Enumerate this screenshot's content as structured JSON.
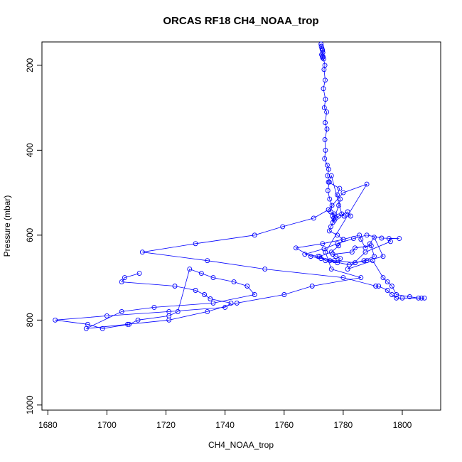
{
  "chart_data": {
    "type": "line",
    "title": "ORCAS RF18 CH4_NOAA_trop",
    "xlabel": "CH4_NOAA_trop",
    "ylabel": "Pressure (mbar)",
    "xlim": [
      1678,
      1813
    ],
    "ylim": [
      1012,
      145
    ],
    "y_reversed": true,
    "x_ticks": [
      1680,
      1700,
      1720,
      1740,
      1760,
      1780,
      1800
    ],
    "y_ticks": [
      200,
      400,
      600,
      800,
      1000
    ],
    "series_color": "#0000ff",
    "marker": "open-circle",
    "series": [
      {
        "x": [
          1772.5,
          1772.6,
          1772.8,
          1772.9,
          1773.0,
          1773.1,
          1772.7,
          1772.9,
          1773.2,
          1773.0,
          1773.4,
          1773.8,
          1773.5,
          1773.9,
          1773.3,
          1774.0,
          1773.6,
          1774.4,
          1773.9,
          1774.5,
          1773.8,
          1774.0,
          1773.7,
          1774.6,
          1775.1,
          1774.7,
          1775.3,
          1774.8,
          1775.4,
          1776.2,
          1775.8,
          1777.0,
          1776.4,
          1777.5,
          1776.8,
          1776.5,
          1778.5,
          1779.0,
          1778.0,
          1778.8,
          1775.0,
          1776.0,
          1779.5,
          1780.3,
          1782.5,
          1781.5,
          1778.5,
          1777.0,
          1775.8,
          1775.3,
          1778.0,
          1780.0,
          1785.5,
          1786.0,
          1787.5,
          1789.0,
          1790.5,
          1793.5,
          1788.0,
          1784.0,
          1777.0,
          1772.5,
          1769.0,
          1764.0,
          1773.0,
          1780.0,
          1778.5,
          1776.0,
          1772.0,
          1774.0,
          1778.0,
          1779.0,
          1777.5,
          1776.5,
          1783.0,
          1784.0,
          1789.5,
          1790.5,
          1787.0,
          1784.0,
          1782.0,
          1775.5,
          1771.5,
          1767.0,
          1773.5,
          1778.0,
          1783.5,
          1788.0,
          1793.0,
          1799.0,
          1795.5,
          1796.0,
          1787.5,
          1781.5,
          1790.0,
          1793.5,
          1795.0,
          1796.5,
          1798.0,
          1802.5,
          1805.5,
          1807.5,
          1806.5,
          1800.0,
          1798.0,
          1796.5,
          1795.0,
          1792.0,
          1791.0,
          1780.0,
          1753.5,
          1734.0,
          1712.0,
          1730.0,
          1750.0,
          1759.5,
          1770.0,
          1775.0,
          1780.0,
          1788.0,
          1774.0,
          1776.0,
          1786.0,
          1769.5,
          1760.0,
          1744.0,
          1734.0,
          1721.0,
          1707.0,
          1693.0,
          1705.0,
          1716.0,
          1736.0,
          1750.0,
          1747.5,
          1743.0,
          1736.0,
          1732.0,
          1728.0,
          1724.0,
          1721.0,
          1710.5,
          1707.5,
          1698.5,
          1693.5,
          1682.5,
          1700.0,
          1721.0,
          1740.0,
          1742.0,
          1735.0,
          1733.0,
          1730.0,
          1723.0,
          1705.0,
          1706.0,
          1711.0
        ],
        "y": [
          150,
          155,
          160,
          163,
          165,
          170,
          175,
          178,
          180,
          182,
          185,
          200,
          210,
          235,
          255,
          280,
          300,
          310,
          335,
          350,
          375,
          400,
          420,
          435,
          445,
          460,
          475,
          495,
          515,
          530,
          545,
          550,
          555,
          560,
          560,
          570,
          530,
          515,
          505,
          490,
          475,
          460,
          550,
          555,
          555,
          545,
          555,
          565,
          580,
          590,
          600,
          610,
          600,
          610,
          630,
          620,
          605,
          650,
          660,
          665,
          660,
          655,
          650,
          630,
          620,
          610,
          625,
          640,
          650,
          660,
          665,
          655,
          650,
          645,
          640,
          630,
          625,
          650,
          660,
          665,
          670,
          660,
          650,
          645,
          632,
          620,
          608,
          600,
          607,
          608,
          608,
          615,
          640,
          680,
          660,
          700,
          710,
          720,
          740,
          745,
          748,
          748,
          748,
          748,
          748,
          740,
          730,
          720,
          720,
          700,
          680,
          660,
          640,
          620,
          600,
          580,
          560,
          540,
          500,
          480,
          640,
          680,
          700,
          720,
          740,
          760,
          780,
          800,
          810,
          820,
          780,
          770,
          760,
          740,
          720,
          710,
          700,
          690,
          680,
          780,
          790,
          800,
          810,
          820,
          810,
          800,
          790,
          780,
          770,
          760,
          750,
          740,
          730,
          720,
          710,
          700,
          690
        ],
        "name": ""
      }
    ]
  }
}
